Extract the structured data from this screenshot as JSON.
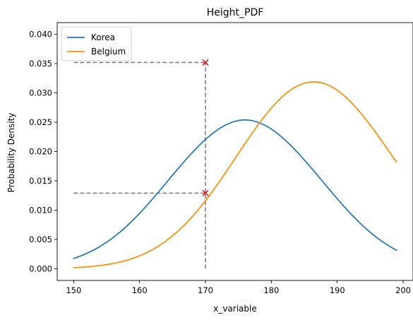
{
  "chart_data": {
    "type": "line",
    "title": "Height_PDF",
    "xlabel": "x_variable",
    "ylabel": "Probability Density",
    "xlim": [
      147.5,
      201.5
    ],
    "ylim": [
      -0.002,
      0.042
    ],
    "xticks": [
      150,
      160,
      170,
      180,
      190,
      200
    ],
    "yticks": [
      0.0,
      0.005,
      0.01,
      0.015,
      0.02,
      0.025,
      0.03,
      0.035,
      0.04
    ],
    "ytick_labels": [
      "0.000",
      "0.005",
      "0.010",
      "0.015",
      "0.020",
      "0.025",
      "0.030",
      "0.035",
      "0.040"
    ],
    "grid": false,
    "legend": "top-left",
    "series": [
      {
        "name": "Korea",
        "color": "#1f77b4",
        "x": [
          150,
          151,
          152,
          153,
          154,
          155,
          156,
          157,
          158,
          159,
          160,
          161,
          162,
          163,
          164,
          165,
          166,
          167,
          168,
          169,
          170,
          171,
          172,
          173,
          174,
          175,
          176,
          177,
          178,
          179,
          180,
          181,
          182,
          183,
          184,
          185,
          186,
          187,
          188,
          189,
          190,
          191,
          192,
          193,
          194,
          195,
          196,
          197,
          198,
          199
        ],
        "y": [
          0.00175,
          0.00215,
          0.00262,
          0.00316,
          0.00379,
          0.00451,
          0.00532,
          0.00622,
          0.00721,
          0.00829,
          0.00944,
          0.01066,
          0.01194,
          0.01326,
          0.0146,
          0.01595,
          0.01728,
          0.01858,
          0.01982,
          0.02099,
          0.02206,
          0.02302,
          0.02384,
          0.0245,
          0.02499,
          0.0253,
          0.02541,
          0.0253,
          0.02499,
          0.0245,
          0.02384,
          0.02302,
          0.02206,
          0.02099,
          0.01982,
          0.01858,
          0.01728,
          0.01595,
          0.0146,
          0.01326,
          0.01194,
          0.01066,
          0.00944,
          0.00829,
          0.00721,
          0.00622,
          0.00532,
          0.00451,
          0.00379,
          0.00316
        ]
      },
      {
        "name": "Belgium",
        "color": "#ff8c00",
        "x": [
          150,
          151,
          152,
          153,
          154,
          155,
          156,
          157,
          158,
          159,
          160,
          161,
          162,
          163,
          164,
          165,
          166,
          167,
          168,
          169,
          170,
          171,
          172,
          173,
          174,
          175,
          176,
          177,
          178,
          179,
          180,
          181,
          182,
          183,
          184,
          185,
          186,
          187,
          188,
          189,
          190,
          191,
          192,
          193,
          194,
          195,
          196,
          197,
          198,
          199
        ],
        "y": [
          0.00018,
          0.00024,
          0.00032,
          0.00042,
          0.00054,
          0.0007,
          0.00089,
          0.00113,
          0.00142,
          0.00177,
          0.00219,
          0.00269,
          0.00327,
          0.00395,
          0.00472,
          0.0056,
          0.00659,
          0.00768,
          0.00888,
          0.01019,
          0.0116,
          0.01309,
          0.01466,
          0.01629,
          0.01796,
          0.01965,
          0.02133,
          0.02298,
          0.02456,
          0.02605,
          0.02742,
          0.02864,
          0.0297,
          0.03056,
          0.03122,
          0.03166,
          0.03188,
          0.03186,
          0.03162,
          0.03115,
          0.03047,
          0.02959,
          0.02853,
          0.02732,
          0.02597,
          0.02452,
          0.02299,
          0.02141,
          0.01981,
          0.01821
        ]
      }
    ],
    "markers": [
      {
        "x": 170,
        "y": 0.0352,
        "symbol": "x",
        "color": "#ff0000"
      },
      {
        "x": 170,
        "y": 0.0129,
        "symbol": "x",
        "color": "#ff0000"
      }
    ],
    "reference_lines": [
      {
        "from_x": 150,
        "to_x": 170,
        "y": 0.0352,
        "style": "dashed",
        "color": "#808080"
      },
      {
        "from_x": 150,
        "to_x": 170,
        "y": 0.0129,
        "style": "dashed",
        "color": "#808080"
      },
      {
        "x": 170,
        "from_y": 0.0,
        "to_y": 0.0352,
        "style": "dashed",
        "color": "#808080"
      }
    ]
  }
}
